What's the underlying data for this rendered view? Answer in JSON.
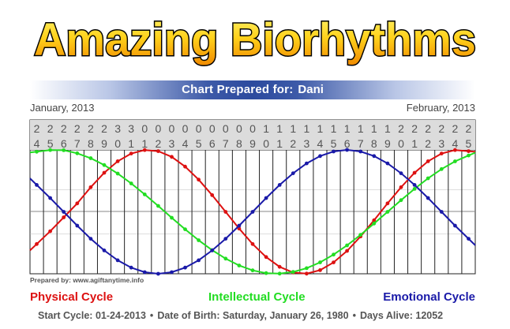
{
  "logo_text": "Amazing Biorhythms",
  "banner": {
    "label": "Chart Prepared for:",
    "name": "Dani"
  },
  "months": {
    "left": "January, 2013",
    "right": "February, 2013"
  },
  "prepared_by": "Prepared by: www.agiftanytime.info",
  "legend": {
    "physical": "Physical Cycle",
    "intellectual": "Intellectual Cycle",
    "emotional": "Emotional Cycle"
  },
  "footer": {
    "start_label": "Start Cycle:",
    "start_value": "01-24-2013",
    "dob_label": "Date of Birth:",
    "dob_value": "Saturday, January 26, 1980",
    "days_label": "Days Alive:",
    "days_value": "12052"
  },
  "colors": {
    "physical": "#dd1111",
    "intellectual": "#22dd22",
    "emotional": "#1a1aa8",
    "grid": "#222222",
    "header_bg": "#dcdcdc"
  },
  "chart_data": {
    "type": "line",
    "x": [
      "24",
      "25",
      "26",
      "27",
      "28",
      "29",
      "30",
      "31",
      "01",
      "02",
      "03",
      "04",
      "05",
      "06",
      "07",
      "08",
      "09",
      "10",
      "11",
      "12",
      "13",
      "14",
      "15",
      "16",
      "17",
      "18",
      "19",
      "20",
      "21",
      "22",
      "23",
      "24",
      "25"
    ],
    "ylim": [
      -1,
      1
    ],
    "series": [
      {
        "name": "Physical Cycle",
        "values": [
          -0.52,
          -0.314,
          -0.089,
          0.136,
          0.398,
          0.631,
          0.817,
          0.942,
          0.998,
          0.979,
          0.888,
          0.73,
          0.52,
          0.27,
          0.0,
          -0.27,
          -0.52,
          -0.73,
          -0.888,
          -0.979,
          -0.998,
          -0.942,
          -0.817,
          -0.631,
          -0.398,
          -0.136,
          0.136,
          0.398,
          0.631,
          0.817,
          0.942,
          0.998,
          0.979
        ]
      },
      {
        "name": "Intellectual Cycle",
        "values": [
          0.971,
          0.998,
          0.995,
          0.945,
          0.866,
          0.756,
          0.618,
          0.458,
          0.282,
          0.095,
          -0.095,
          -0.282,
          -0.458,
          -0.618,
          -0.756,
          -0.866,
          -0.945,
          -0.99,
          -0.998,
          -0.971,
          -0.909,
          -0.815,
          -0.69,
          -0.541,
          -0.371,
          -0.189,
          0.0,
          0.189,
          0.371,
          0.541,
          0.69,
          0.815,
          0.909
        ]
      },
      {
        "name": "Emotional Cycle",
        "values": [
          0.434,
          0.223,
          0.0,
          -0.223,
          -0.434,
          -0.623,
          -0.782,
          -0.901,
          -0.975,
          -1.0,
          -0.975,
          -0.901,
          -0.782,
          -0.623,
          -0.434,
          -0.223,
          0.0,
          0.223,
          0.434,
          0.623,
          0.782,
          0.901,
          0.975,
          1.0,
          0.975,
          0.901,
          0.782,
          0.623,
          0.434,
          0.223,
          0.0,
          -0.223,
          -0.434
        ]
      }
    ]
  }
}
